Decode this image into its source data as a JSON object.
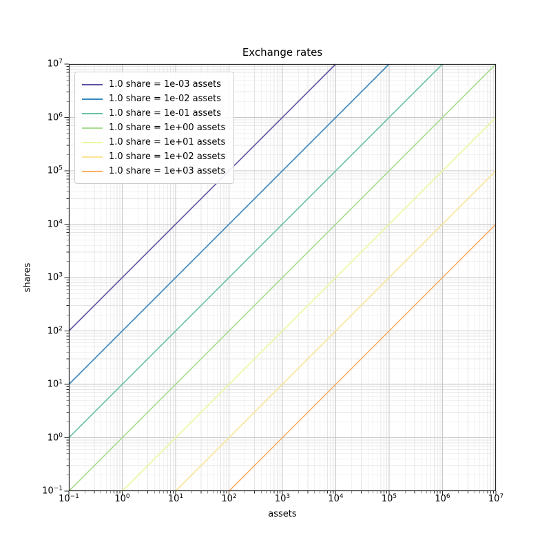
{
  "chart_data": {
    "type": "line",
    "title": "Exchange rates",
    "xlabel": "assets",
    "ylabel": "shares",
    "xscale": "log",
    "yscale": "log",
    "xlim": [
      0.1,
      10000000
    ],
    "ylim": [
      0.1,
      10000000
    ],
    "axis_exponent_range": [
      -1,
      7
    ],
    "grid": "both",
    "legend_position": "upper left",
    "x_ticks": [
      {
        "base": "10",
        "exp": "−1",
        "exponent": -1
      },
      {
        "base": "10",
        "exp": "0",
        "exponent": 0
      },
      {
        "base": "10",
        "exp": "1",
        "exponent": 1
      },
      {
        "base": "10",
        "exp": "2",
        "exponent": 2
      },
      {
        "base": "10",
        "exp": "3",
        "exponent": 3
      },
      {
        "base": "10",
        "exp": "4",
        "exponent": 4
      },
      {
        "base": "10",
        "exp": "5",
        "exponent": 5
      },
      {
        "base": "10",
        "exp": "6",
        "exponent": 6
      },
      {
        "base": "10",
        "exp": "7",
        "exponent": 7
      }
    ],
    "y_ticks": [
      {
        "base": "10",
        "exp": "−1",
        "exponent": -1
      },
      {
        "base": "10",
        "exp": "0",
        "exponent": 0
      },
      {
        "base": "10",
        "exp": "1",
        "exponent": 1
      },
      {
        "base": "10",
        "exp": "2",
        "exponent": 2
      },
      {
        "base": "10",
        "exp": "3",
        "exponent": 3
      },
      {
        "base": "10",
        "exp": "4",
        "exponent": 4
      },
      {
        "base": "10",
        "exp": "5",
        "exponent": 5
      },
      {
        "base": "10",
        "exp": "6",
        "exponent": 6
      },
      {
        "base": "10",
        "exp": "7",
        "exponent": 7
      }
    ],
    "series": [
      {
        "label": "1.0 share = 1e-03 assets",
        "assets_per_share": 0.001,
        "color": "#5e4fa2",
        "points": [
          [
            0.1,
            100
          ],
          [
            10000,
            10000000
          ]
        ]
      },
      {
        "label": "1.0 share = 1e-02 assets",
        "assets_per_share": 0.01,
        "color": "#3288bd",
        "points": [
          [
            0.1,
            10
          ],
          [
            100000,
            10000000
          ]
        ]
      },
      {
        "label": "1.0 share = 1e-01 assets",
        "assets_per_share": 0.1,
        "color": "#66c2a5",
        "points": [
          [
            0.1,
            1
          ],
          [
            1000000,
            10000000
          ]
        ]
      },
      {
        "label": "1.0 share = 1e+00 assets",
        "assets_per_share": 1,
        "color": "#a8dc8f",
        "points": [
          [
            0.1,
            0.1
          ],
          [
            10000000,
            10000000
          ]
        ]
      },
      {
        "label": "1.0 share = 1e+01 assets",
        "assets_per_share": 10,
        "color": "#eaf79c",
        "points": [
          [
            1,
            0.1
          ],
          [
            10000000,
            1000000
          ]
        ]
      },
      {
        "label": "1.0 share = 1e+02 assets",
        "assets_per_share": 100,
        "color": "#fee394",
        "points": [
          [
            10,
            0.1
          ],
          [
            10000000,
            100000
          ]
        ]
      },
      {
        "label": "1.0 share = 1e+03 assets",
        "assets_per_share": 1000,
        "color": "#fdae61",
        "points": [
          [
            100,
            0.1
          ],
          [
            10000000,
            10000
          ]
        ]
      }
    ],
    "style": {
      "grid_major_color": "#c6c6c6",
      "grid_minor_color": "#e4e4e4",
      "spine_color": "#262626",
      "line_width": 1.6
    }
  }
}
